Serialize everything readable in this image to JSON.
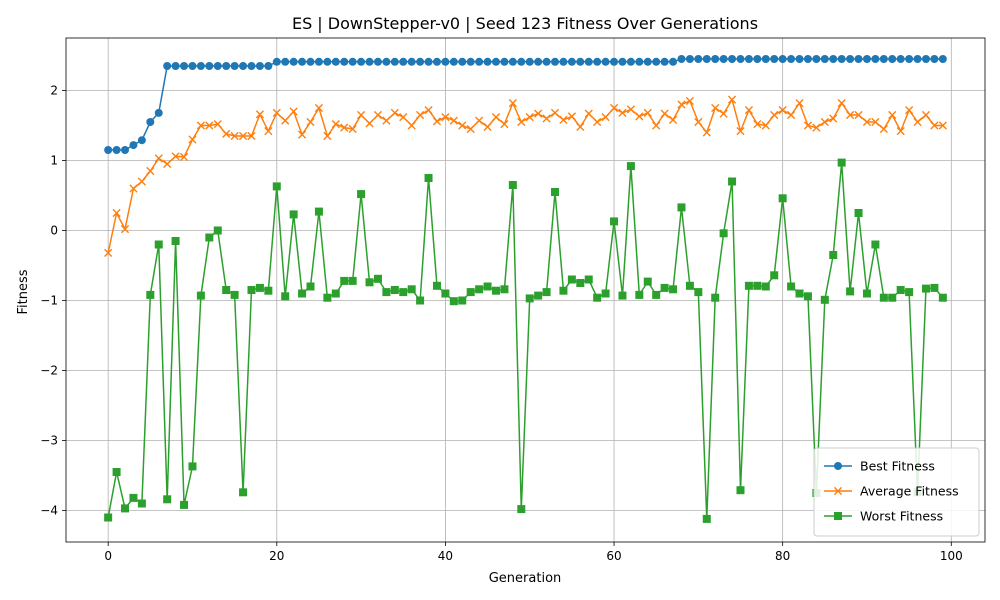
{
  "chart_data": {
    "type": "line",
    "title": "ES | DownStepper-v0 | Seed 123 Fitness Over Generations",
    "xlabel": "Generation",
    "ylabel": "Fitness",
    "xlim": [
      -5,
      104
    ],
    "ylim": [
      -4.45,
      2.75
    ],
    "xticks": [
      0,
      20,
      40,
      60,
      80,
      100
    ],
    "yticks": [
      -4,
      -3,
      -2,
      -1,
      0,
      1,
      2
    ],
    "grid": true,
    "legend_position": "lower right",
    "x": [
      0,
      1,
      2,
      3,
      4,
      5,
      6,
      7,
      8,
      9,
      10,
      11,
      12,
      13,
      14,
      15,
      16,
      17,
      18,
      19,
      20,
      21,
      22,
      23,
      24,
      25,
      26,
      27,
      28,
      29,
      30,
      31,
      32,
      33,
      34,
      35,
      36,
      37,
      38,
      39,
      40,
      41,
      42,
      43,
      44,
      45,
      46,
      47,
      48,
      49,
      50,
      51,
      52,
      53,
      54,
      55,
      56,
      57,
      58,
      59,
      60,
      61,
      62,
      63,
      64,
      65,
      66,
      67,
      68,
      69,
      70,
      71,
      72,
      73,
      74,
      75,
      76,
      77,
      78,
      79,
      80,
      81,
      82,
      83,
      84,
      85,
      86,
      87,
      88,
      89,
      90,
      91,
      92,
      93,
      94,
      95,
      96,
      97,
      98,
      99
    ],
    "series": [
      {
        "name": "Best Fitness",
        "color": "#1f77b4",
        "marker": "circle",
        "values": [
          1.15,
          1.15,
          1.15,
          1.22,
          1.29,
          1.55,
          1.68,
          2.35,
          2.35,
          2.35,
          2.35,
          2.35,
          2.35,
          2.35,
          2.35,
          2.35,
          2.35,
          2.35,
          2.35,
          2.35,
          2.41,
          2.41,
          2.41,
          2.41,
          2.41,
          2.41,
          2.41,
          2.41,
          2.41,
          2.41,
          2.41,
          2.41,
          2.41,
          2.41,
          2.41,
          2.41,
          2.41,
          2.41,
          2.41,
          2.41,
          2.41,
          2.41,
          2.41,
          2.41,
          2.41,
          2.41,
          2.41,
          2.41,
          2.41,
          2.41,
          2.41,
          2.41,
          2.41,
          2.41,
          2.41,
          2.41,
          2.41,
          2.41,
          2.41,
          2.41,
          2.41,
          2.41,
          2.41,
          2.41,
          2.41,
          2.41,
          2.41,
          2.41,
          2.45,
          2.45,
          2.45,
          2.45,
          2.45,
          2.45,
          2.45,
          2.45,
          2.45,
          2.45,
          2.45,
          2.45,
          2.45,
          2.45,
          2.45,
          2.45,
          2.45,
          2.45,
          2.45,
          2.45,
          2.45,
          2.45,
          2.45,
          2.45,
          2.45,
          2.45,
          2.45,
          2.45,
          2.45,
          2.45,
          2.45,
          2.45
        ]
      },
      {
        "name": "Average Fitness",
        "color": "#ff7f0e",
        "marker": "x",
        "values": [
          -0.32,
          0.25,
          0.02,
          0.6,
          0.7,
          0.85,
          1.03,
          0.95,
          1.06,
          1.05,
          1.3,
          1.5,
          1.5,
          1.52,
          1.38,
          1.35,
          1.35,
          1.35,
          1.66,
          1.42,
          1.68,
          1.57,
          1.7,
          1.37,
          1.55,
          1.75,
          1.35,
          1.52,
          1.47,
          1.45,
          1.65,
          1.53,
          1.65,
          1.57,
          1.68,
          1.62,
          1.5,
          1.65,
          1.72,
          1.56,
          1.62,
          1.57,
          1.5,
          1.45,
          1.57,
          1.48,
          1.62,
          1.52,
          1.82,
          1.55,
          1.62,
          1.67,
          1.6,
          1.68,
          1.58,
          1.63,
          1.48,
          1.67,
          1.55,
          1.62,
          1.75,
          1.68,
          1.73,
          1.63,
          1.68,
          1.5,
          1.67,
          1.58,
          1.8,
          1.85,
          1.55,
          1.4,
          1.75,
          1.67,
          1.87,
          1.42,
          1.72,
          1.52,
          1.5,
          1.65,
          1.72,
          1.65,
          1.82,
          1.5,
          1.47,
          1.55,
          1.6,
          1.82,
          1.65,
          1.65,
          1.55,
          1.55,
          1.45,
          1.65,
          1.42,
          1.72,
          1.55,
          1.65,
          1.5,
          1.5
        ]
      },
      {
        "name": "Worst Fitness",
        "color": "#2ca02c",
        "marker": "square",
        "values": [
          -4.1,
          -3.45,
          -3.97,
          -3.82,
          -3.9,
          -0.92,
          -0.2,
          -3.84,
          -0.15,
          -3.92,
          -3.37,
          -0.93,
          -0.1,
          0.0,
          -0.85,
          -0.92,
          -3.74,
          -0.85,
          -0.82,
          -0.86,
          0.63,
          -0.94,
          0.23,
          -0.9,
          -0.8,
          0.27,
          -0.96,
          -0.9,
          -0.72,
          -0.72,
          0.52,
          -0.74,
          -0.69,
          -0.88,
          -0.85,
          -0.88,
          -0.84,
          -1.0,
          0.75,
          -0.79,
          -0.9,
          -1.01,
          -1.0,
          -0.88,
          -0.84,
          -0.8,
          -0.86,
          -0.84,
          0.65,
          -3.98,
          -0.97,
          -0.93,
          -0.88,
          0.55,
          -0.86,
          -0.7,
          -0.75,
          -0.7,
          -0.96,
          -0.9,
          0.13,
          -0.93,
          0.92,
          -0.92,
          -0.73,
          -0.92,
          -0.82,
          -0.84,
          0.33,
          -0.79,
          -0.88,
          -4.12,
          -0.96,
          -0.04,
          0.7,
          -3.71,
          -0.79,
          -0.79,
          -0.8,
          -0.64,
          0.46,
          -0.8,
          -0.9,
          -0.94,
          -3.75,
          -0.99,
          -0.35,
          0.97,
          -0.87,
          0.25,
          -0.9,
          -0.2,
          -0.96,
          -0.96,
          -0.85,
          -0.88,
          -3.74,
          -0.83,
          -0.82,
          -0.96
        ]
      }
    ]
  }
}
